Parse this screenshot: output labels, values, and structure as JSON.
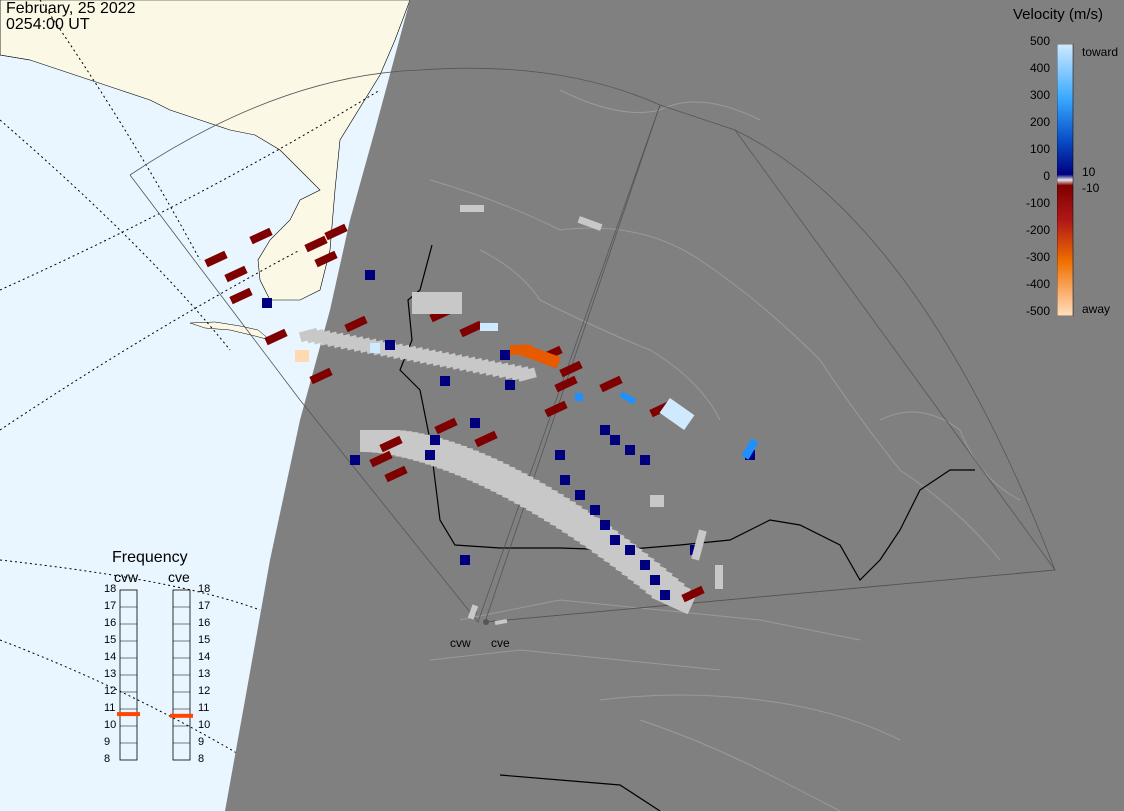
{
  "header": {
    "date": "February, 25 2022",
    "time": "0254:00 UT"
  },
  "legend": {
    "title": "Velocity (m/s)",
    "ticks": [
      "500",
      "400",
      "300",
      "200",
      "100",
      "0",
      "-100",
      "-200",
      "-300",
      "-400",
      "-500"
    ],
    "toward_label": "toward",
    "away_label": "away",
    "pos_threshold": "10",
    "neg_threshold": "-10",
    "colors": {
      "toward_light": "#cfeaff",
      "toward_mid": "#1e90ff",
      "toward_dark": "#00007f",
      "away_dark": "#7f0000",
      "away_mid": "#e85a00",
      "away_light": "#ffd9b0",
      "ground_scatter": "#c8c8c8"
    }
  },
  "frequency": {
    "title": "Frequency",
    "radars": [
      {
        "code": "cvw",
        "value_mhz": 10.7
      },
      {
        "code": "cve",
        "value_mhz": 10.6
      }
    ],
    "scale": [
      "18",
      "17",
      "16",
      "15",
      "14",
      "13",
      "12",
      "11",
      "10",
      "9",
      "8"
    ],
    "marker_color": "#ff4500"
  },
  "radar_sites": [
    "cvw",
    "cve"
  ],
  "map_colors": {
    "night": "#808080",
    "day_ocean": "#e9f6ff",
    "day_land": "#fbf8e6",
    "boundary": "#000000",
    "grid": "#a9a9a9"
  }
}
